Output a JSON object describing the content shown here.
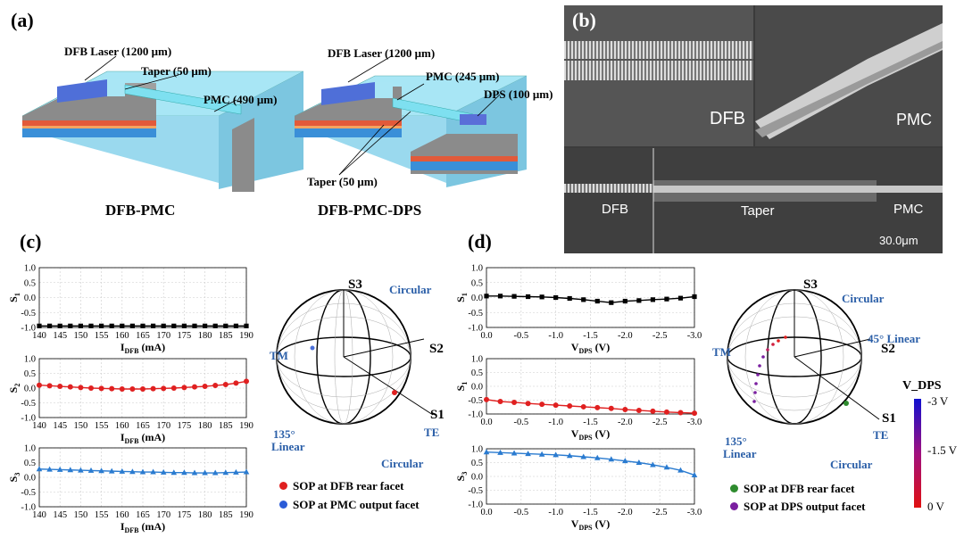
{
  "panels": {
    "a": "(a)",
    "b": "(b)",
    "c": "(c)",
    "d": "(d)"
  },
  "panel_a": {
    "left": {
      "dfb": "DFB Laser (1200 μm)",
      "taper": "Taper (50 μm)",
      "pmc": "PMC (490 μm)",
      "caption": "DFB-PMC"
    },
    "right": {
      "dfb": "DFB Laser (1200 μm)",
      "pmc": "PMC (245 μm)",
      "dps": "DPS (100 μm)",
      "taper": "Taper (50 μm)",
      "caption": "DFB-PMC-DPS"
    }
  },
  "panel_b": {
    "dfb_top": "DFB",
    "pmc_top": "PMC",
    "dfb_bottom": "DFB",
    "taper": "Taper",
    "pmc_bottom": "PMC",
    "scale": "30.0μm"
  },
  "panel_c": {
    "xlabel": "I_DFB (mA)",
    "x_ticks": [
      "140",
      "145",
      "150",
      "155",
      "160",
      "165",
      "170",
      "175",
      "180",
      "185",
      "190"
    ],
    "y_ticks": [
      "1.0",
      "0.5",
      "0.0",
      "-0.5",
      "-1.0"
    ],
    "sphere": {
      "s3": "S3",
      "s2": "S2",
      "s1": "S1",
      "circular_top": "Circular",
      "circular_bottom": "Circular",
      "tm": "TM",
      "te": "TE",
      "linear135_a": "135°",
      "linear135_b": "Linear"
    },
    "legend": [
      {
        "label": "SOP at DFB rear facet",
        "color": "#e02020"
      },
      {
        "label": "SOP at PMC output facet",
        "color": "#2a5bd7"
      }
    ]
  },
  "panel_d": {
    "xlabel": "V_DPS (V)",
    "x_ticks": [
      "0.0",
      "-0.5",
      "-1.0",
      "-1.5",
      "-2.0",
      "-2.5",
      "-3.0"
    ],
    "y_ticks": [
      "1.0",
      "0.5",
      "0.0",
      "-0.5",
      "-1.0"
    ],
    "sphere": {
      "s3": "S3",
      "s2": "S2",
      "s1": "S1",
      "circular_top": "Circular",
      "circular_bottom": "Circular",
      "tm": "TM",
      "te": "TE",
      "linear45": "45° Linear",
      "linear135_a": "135°",
      "linear135_b": "Linear"
    },
    "legend": [
      {
        "label": "SOP at DFB rear facet",
        "color": "#2e8b2e"
      },
      {
        "label": "SOP at DPS output facet",
        "color": "#7a1fa0"
      }
    ],
    "colorbar": {
      "title": "V_DPS",
      "top": "-3 V",
      "mid": "-1.5 V",
      "bottom": "0 V"
    }
  },
  "chart_data": [
    {
      "type": "line",
      "panel": "c-top",
      "ylabel": "S1",
      "xlabel": "I_DFB (mA)",
      "ylim": [
        -1,
        1
      ],
      "x": [
        140,
        142.5,
        145,
        147.5,
        150,
        152.5,
        155,
        157.5,
        160,
        162.5,
        165,
        167.5,
        170,
        172.5,
        175,
        177.5,
        180,
        182.5,
        185,
        187.5,
        190
      ],
      "series": [
        {
          "values": [
            -0.95,
            -0.95,
            -0.95,
            -0.95,
            -0.95,
            -0.95,
            -0.95,
            -0.95,
            -0.95,
            -0.95,
            -0.95,
            -0.95,
            -0.95,
            -0.95,
            -0.95,
            -0.95,
            -0.95,
            -0.95,
            -0.95,
            -0.95,
            -0.95
          ],
          "color": "#000000",
          "marker": "square"
        }
      ]
    },
    {
      "type": "line",
      "panel": "c-mid",
      "ylabel": "S2",
      "xlabel": "I_DFB (mA)",
      "ylim": [
        -1,
        1
      ],
      "x": [
        140,
        142.5,
        145,
        147.5,
        150,
        152.5,
        155,
        157.5,
        160,
        162.5,
        165,
        167.5,
        170,
        172.5,
        175,
        177.5,
        180,
        182.5,
        185,
        187.5,
        190
      ],
      "series": [
        {
          "values": [
            0.1,
            0.08,
            0.06,
            0.04,
            0.02,
            0.0,
            -0.01,
            -0.02,
            -0.03,
            -0.03,
            -0.03,
            -0.02,
            -0.01,
            0.0,
            0.02,
            0.04,
            0.06,
            0.09,
            0.12,
            0.17,
            0.23
          ],
          "color": "#e02020",
          "marker": "circle"
        }
      ]
    },
    {
      "type": "line",
      "panel": "c-bot",
      "ylabel": "S3",
      "xlabel": "I_DFB (mA)",
      "ylim": [
        -1,
        1
      ],
      "x": [
        140,
        142.5,
        145,
        147.5,
        150,
        152.5,
        155,
        157.5,
        160,
        162.5,
        165,
        167.5,
        170,
        172.5,
        175,
        177.5,
        180,
        182.5,
        185,
        187.5,
        190
      ],
      "series": [
        {
          "values": [
            0.28,
            0.27,
            0.26,
            0.25,
            0.24,
            0.23,
            0.22,
            0.21,
            0.2,
            0.19,
            0.18,
            0.18,
            0.17,
            0.16,
            0.16,
            0.15,
            0.15,
            0.15,
            0.16,
            0.17,
            0.18
          ],
          "color": "#2a7bd0",
          "marker": "triangle"
        }
      ]
    },
    {
      "type": "line",
      "panel": "d-top",
      "ylabel": "S1",
      "xlabel": "V_DPS (V)",
      "ylim": [
        -1,
        1
      ],
      "x": [
        0,
        -0.2,
        -0.4,
        -0.6,
        -0.8,
        -1.0,
        -1.2,
        -1.4,
        -1.6,
        -1.8,
        -2.0,
        -2.2,
        -2.4,
        -2.6,
        -2.8,
        -3.0
      ],
      "series": [
        {
          "values": [
            0.05,
            0.05,
            0.04,
            0.03,
            0.02,
            0.0,
            -0.03,
            -0.07,
            -0.12,
            -0.17,
            -0.12,
            -0.1,
            -0.07,
            -0.05,
            -0.02,
            0.03
          ],
          "color": "#000000",
          "marker": "square"
        }
      ]
    },
    {
      "type": "line",
      "panel": "d-mid",
      "ylabel": "S1",
      "xlabel": "V_DPS (V)",
      "ylim": [
        -1,
        1
      ],
      "x": [
        0,
        -0.2,
        -0.4,
        -0.6,
        -0.8,
        -1.0,
        -1.2,
        -1.4,
        -1.6,
        -1.8,
        -2.0,
        -2.2,
        -2.4,
        -2.6,
        -2.8,
        -3.0
      ],
      "series": [
        {
          "values": [
            -0.48,
            -0.55,
            -0.58,
            -0.62,
            -0.65,
            -0.68,
            -0.71,
            -0.74,
            -0.77,
            -0.8,
            -0.84,
            -0.87,
            -0.9,
            -0.93,
            -0.95,
            -0.97
          ],
          "color": "#e02020",
          "marker": "circle"
        }
      ]
    },
    {
      "type": "line",
      "panel": "d-bot",
      "ylabel": "S3",
      "xlabel": "V_DPS (V)",
      "ylim": [
        -1,
        1
      ],
      "x": [
        0,
        -0.2,
        -0.4,
        -0.6,
        -0.8,
        -1.0,
        -1.2,
        -1.4,
        -1.6,
        -1.8,
        -2.0,
        -2.2,
        -2.4,
        -2.6,
        -2.8,
        -3.0
      ],
      "series": [
        {
          "values": [
            0.88,
            0.86,
            0.84,
            0.82,
            0.8,
            0.78,
            0.75,
            0.71,
            0.67,
            0.62,
            0.56,
            0.5,
            0.42,
            0.33,
            0.22,
            0.05
          ],
          "color": "#2a7bd0",
          "marker": "triangle"
        }
      ]
    }
  ]
}
